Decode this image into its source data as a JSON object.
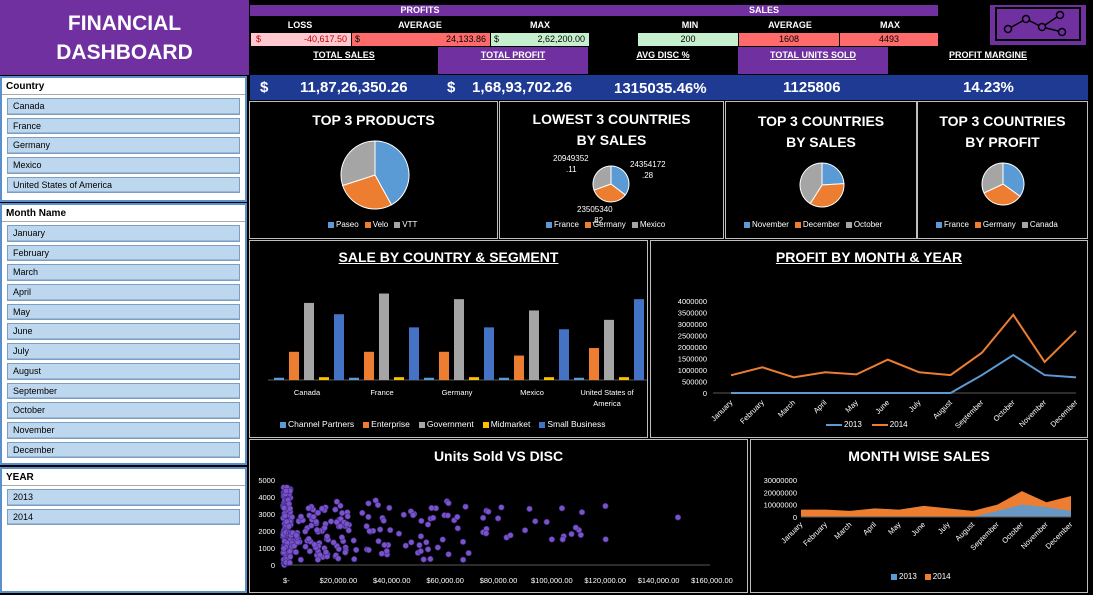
{
  "title": {
    "line1": "FINANCIAL",
    "line2": "DASHBOARD"
  },
  "slicers": {
    "country": {
      "header": "Country",
      "items": [
        "Canada",
        "France",
        "Germany",
        "Mexico",
        "United States of America"
      ]
    },
    "month": {
      "header": "Month Name",
      "items": [
        "January",
        "February",
        "March",
        "April",
        "May",
        "June",
        "July",
        "August",
        "September",
        "October",
        "November",
        "December"
      ]
    },
    "year": {
      "header": "YEAR",
      "items": [
        "2013",
        "2014"
      ]
    }
  },
  "summary": {
    "profits_header": "PROFITS",
    "sales_header": "SALES",
    "loss_label": "LOSS",
    "average_label": "AVERAGE",
    "max_label": "MAX",
    "min_label": "MIN",
    "sales_average_label": "AVERAGE",
    "sales_max_label": "MAX",
    "currency": "$",
    "loss_value": "-40,617.50",
    "average_value": "24,133.86",
    "max_value": "2,62,200.00",
    "sales_min": "200",
    "sales_average": "1608",
    "sales_max": "4493"
  },
  "kpis": {
    "total_sales_label": "TOTAL SALES",
    "total_profit_label": "TOTAL PROFIT",
    "avg_disc_label": "AVG DISC %",
    "total_units_label": "TOTAL UNITS SOLD",
    "profit_margin_label": "PROFIT MARGINE",
    "currency": "$",
    "total_sales": "11,87,26,350.26",
    "total_profit": "1,68,93,702.26",
    "avg_disc": "1315035.46%",
    "total_units": "1125806",
    "profit_margin": "14.23%"
  },
  "colors": {
    "purple": "#7030a0",
    "blue": "#5b9bd5",
    "orange": "#ed7d31",
    "gray": "#a5a5a5",
    "gold": "#ffc000",
    "navy": "#4472c4",
    "scatter": "#7b52c9"
  },
  "charts": {
    "top3_products": {
      "title": "TOP 3 PRODUCTS",
      "labels": [
        "Paseo",
        "Velo",
        "VTT"
      ],
      "values": [
        42,
        28,
        30
      ]
    },
    "lowest3_countries": {
      "title_line1": "LOWEST 3 COUNTRIES",
      "title_line2": "BY SALES",
      "labels": [
        "France",
        "Germany",
        "Mexico"
      ],
      "values": [
        24354172.28,
        23505340.82,
        20949352.11
      ],
      "data_labels": [
        "24354172",
        ".28",
        "23505340",
        ".82",
        "20949352",
        ".11"
      ]
    },
    "top3_sales": {
      "title_line1": "TOP 3 COUNTRIES",
      "title_line2": "BY SALES",
      "labels": [
        "November",
        "December",
        "October"
      ],
      "values": [
        24,
        35,
        41
      ]
    },
    "top3_profit": {
      "title_line1": "TOP 3 COUNTRIES",
      "title_line2": "BY PROFIT",
      "labels": [
        "France",
        "Germany",
        "Canada"
      ],
      "values": [
        35,
        33,
        32
      ]
    },
    "segment": {
      "title": "SALE BY COUNTRY & SEGMENT",
      "categories": [
        "Canada",
        "France",
        "Germany",
        "Mexico",
        "United States of America"
      ],
      "series": [
        {
          "name": "Channel Partners",
          "values": [
            1.2,
            1.2,
            1.2,
            1.2,
            1.2
          ]
        },
        {
          "name": "Enterprise",
          "values": [
            15,
            15,
            15,
            13,
            17
          ]
        },
        {
          "name": "Government",
          "values": [
            41,
            46,
            43,
            37,
            32
          ]
        },
        {
          "name": "Midmarket",
          "values": [
            1.5,
            1.5,
            1.5,
            1.5,
            1.5
          ]
        },
        {
          "name": "Small Business",
          "values": [
            35,
            28,
            28,
            27,
            43
          ]
        }
      ],
      "ylim": [
        0,
        50
      ]
    },
    "profit_month": {
      "title": "PROFIT BY MONTH & YEAR",
      "categories": [
        "January",
        "February",
        "March",
        "April",
        "May",
        "June",
        "July",
        "August",
        "September",
        "October",
        "November",
        "December"
      ],
      "yticks": [
        "0",
        "500000",
        "1000000",
        "1500000",
        "2000000",
        "2500000",
        "3000000",
        "3500000",
        "4000000"
      ],
      "ylim": [
        0,
        4000000
      ],
      "series": [
        {
          "name": "2013",
          "values": [
            0,
            0,
            0,
            0,
            0,
            0,
            0,
            0,
            780000,
            1650000,
            780000,
            680000
          ]
        },
        {
          "name": "2014",
          "values": [
            770000,
            1120000,
            680000,
            900000,
            810000,
            1450000,
            900000,
            780000,
            1750000,
            3400000,
            1350000,
            2700000
          ]
        }
      ]
    },
    "units_disc": {
      "title": "Units Sold VS DISC",
      "xticks": [
        "$-",
        "$20,000.00",
        "$40,000.00",
        "$60,000.00",
        "$80,000.00",
        "$100,000.00",
        "$120,000.00",
        "$140,000.00",
        "$160,000.00"
      ],
      "yticks": [
        "0",
        "1000",
        "2000",
        "3000",
        "4000",
        "5000"
      ],
      "xlim": [
        0,
        160000
      ],
      "ylim": [
        0,
        5000
      ]
    },
    "month_sales": {
      "title": "MONTH WISE SALES",
      "categories": [
        "January",
        "February",
        "March",
        "April",
        "May",
        "June",
        "July",
        "August",
        "September",
        "October",
        "November",
        "December"
      ],
      "yticks": [
        "0",
        "10000000",
        "20000000",
        "30000000"
      ],
      "ylim": [
        0,
        30000000
      ],
      "series": [
        {
          "name": "2013",
          "values": [
            0,
            0,
            0,
            0,
            0,
            0,
            0,
            0,
            5000000,
            10000000,
            8000000,
            5000000
          ]
        },
        {
          "name": "2014",
          "values": [
            6000000,
            6000000,
            5000000,
            7000000,
            6000000,
            9000000,
            7000000,
            5000000,
            10000000,
            21000000,
            12000000,
            17000000
          ]
        }
      ]
    }
  }
}
